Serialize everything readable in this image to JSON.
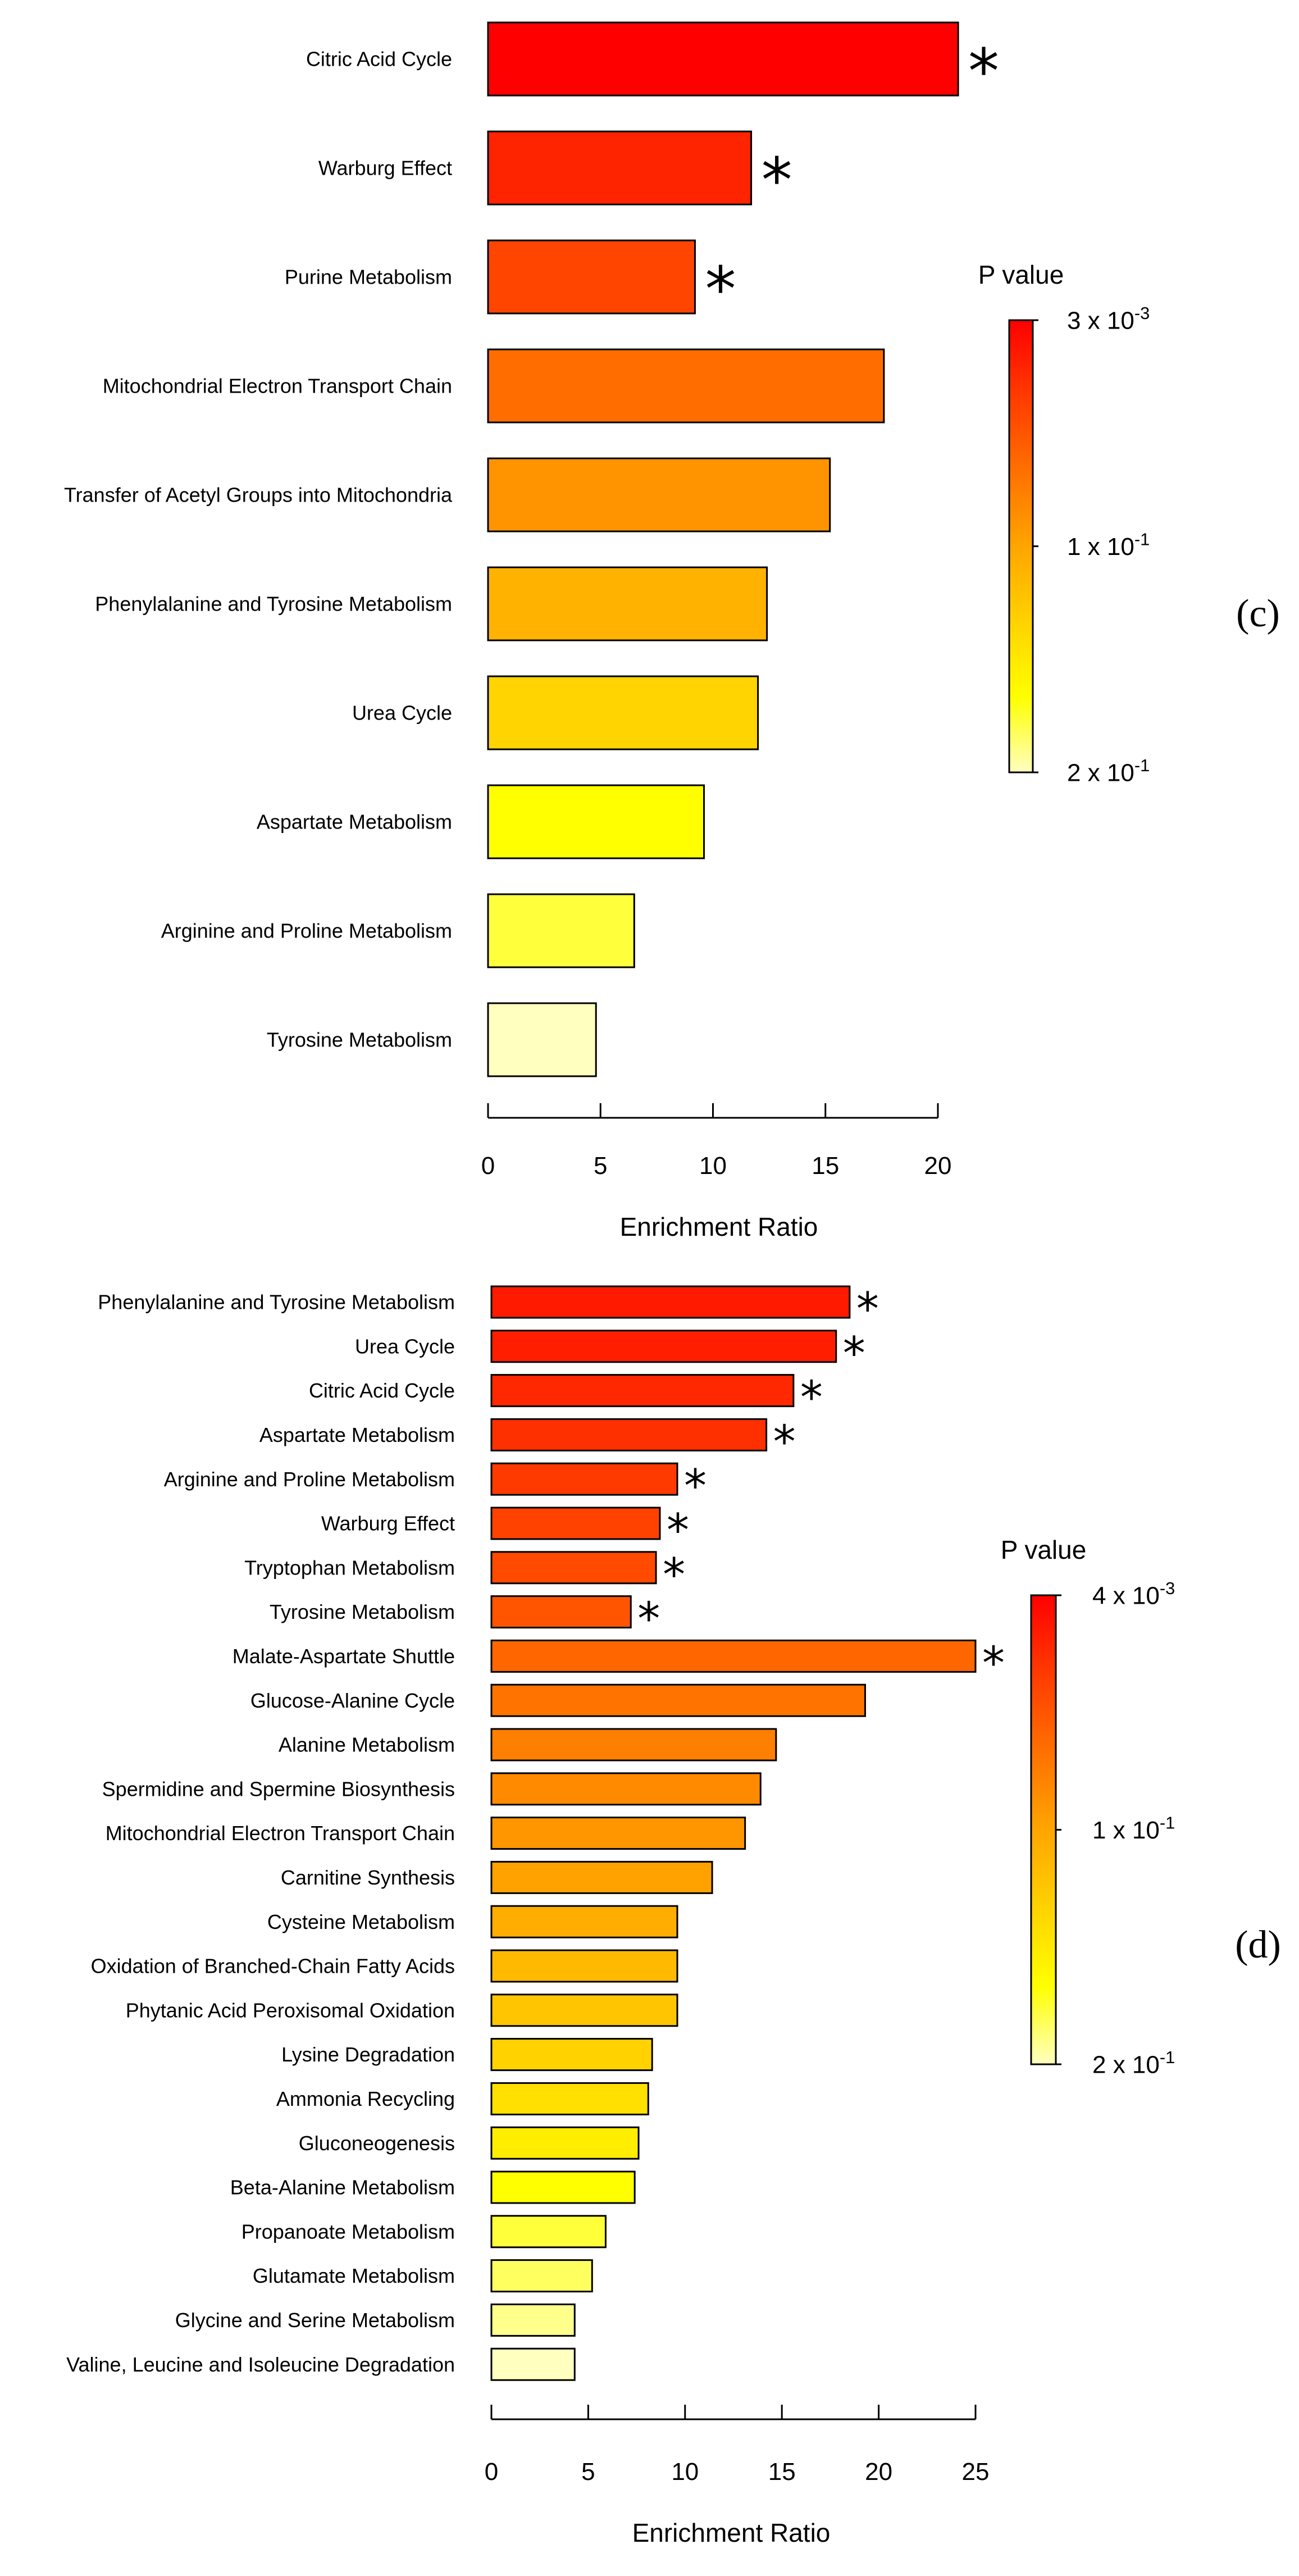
{
  "chart_data": [
    {
      "type": "bar",
      "orientation": "horizontal",
      "panel_label": "(c)",
      "xlabel": "Enrichment Ratio",
      "xlim": [
        0,
        20
      ],
      "xticks": [
        "0",
        "5",
        "10",
        "15",
        "20"
      ],
      "categories": [
        "Citric Acid Cycle",
        "Warburg Effect",
        "Purine Metabolism",
        "Mitochondrial Electron Transport Chain",
        "Transfer of Acetyl Groups into Mitochondria",
        "Phenylalanine and Tyrosine Metabolism",
        "Urea Cycle",
        "Aspartate Metabolism",
        "Arginine and Proline Metabolism",
        "Tyrosine Metabolism"
      ],
      "values": [
        20.9,
        11.7,
        9.2,
        17.6,
        15.2,
        12.4,
        12.0,
        9.6,
        6.5,
        4.8
      ],
      "significant": [
        true,
        true,
        true,
        false,
        false,
        false,
        false,
        false,
        false,
        false
      ],
      "colors": [
        "#ff0000",
        "#ff2400",
        "#ff4500",
        "#ff6d00",
        "#ff9400",
        "#ffb300",
        "#ffd400",
        "#ffff00",
        "#ffff3c",
        "#ffffc0"
      ],
      "star_symbol": "*",
      "legend": {
        "title": "P value",
        "ticks": [
          {
            "base": "3 x 10",
            "exp": "-3"
          },
          {
            "base": "1 x 10",
            "exp": "-1"
          },
          {
            "base": "2 x 10",
            "exp": "-1"
          }
        ],
        "colors": [
          "#ff0000",
          "#ff3a00",
          "#ff7000",
          "#ffa500",
          "#ffd200",
          "#ffff00",
          "#ffffc0"
        ]
      }
    },
    {
      "type": "bar",
      "orientation": "horizontal",
      "panel_label": "(d)",
      "xlabel": "Enrichment Ratio",
      "xlim": [
        0,
        25
      ],
      "xticks": [
        "0",
        "5",
        "10",
        "15",
        "20",
        "25"
      ],
      "categories": [
        "Phenylalanine and Tyrosine Metabolism",
        "Urea Cycle",
        "Citric Acid Cycle",
        "Aspartate Metabolism",
        "Arginine and Proline Metabolism",
        "Warburg Effect",
        "Tryptophan Metabolism",
        "Tyrosine Metabolism",
        "Malate-Aspartate Shuttle",
        "Glucose-Alanine Cycle",
        "Alanine Metabolism",
        "Spermidine and Spermine Biosynthesis",
        "Mitochondrial Electron Transport Chain",
        "Carnitine Synthesis",
        "Cysteine Metabolism",
        "Oxidation of Branched-Chain Fatty Acids",
        "Phytanic Acid Peroxisomal Oxidation",
        "Lysine Degradation",
        "Ammonia Recycling",
        "Gluconeogenesis",
        "Beta-Alanine Metabolism",
        "Propanoate Metabolism",
        "Glutamate Metabolism",
        "Glycine and Serine Metabolism",
        "Valine, Leucine and Isoleucine Degradation"
      ],
      "values": [
        18.5,
        17.8,
        15.6,
        14.2,
        9.6,
        8.7,
        8.5,
        7.2,
        25.0,
        19.3,
        14.7,
        13.9,
        13.1,
        11.4,
        9.6,
        9.6,
        9.6,
        8.3,
        8.1,
        7.6,
        7.4,
        5.9,
        5.2,
        4.3,
        4.3
      ],
      "significant": [
        true,
        true,
        true,
        true,
        true,
        true,
        true,
        true,
        true,
        false,
        false,
        false,
        false,
        false,
        false,
        false,
        false,
        false,
        false,
        false,
        false,
        false,
        false,
        false,
        false
      ],
      "colors": [
        "#ff1a00",
        "#ff1f00",
        "#ff2800",
        "#ff3000",
        "#ff3a00",
        "#ff4200",
        "#ff4a00",
        "#ff5500",
        "#ff6600",
        "#ff7300",
        "#ff7f00",
        "#ff8a00",
        "#ff9600",
        "#ffa200",
        "#ffae00",
        "#ffba00",
        "#ffc500",
        "#ffd200",
        "#ffe000",
        "#ffee00",
        "#ffff00",
        "#ffff3a",
        "#ffff60",
        "#ffff8c",
        "#ffffc0"
      ],
      "star_symbol": "*",
      "legend": {
        "title": "P value",
        "ticks": [
          {
            "base": "4 x 10",
            "exp": "-3"
          },
          {
            "base": "1 x 10",
            "exp": "-1"
          },
          {
            "base": "2 x 10",
            "exp": "-1"
          }
        ],
        "colors": [
          "#ff0000",
          "#ff3a00",
          "#ff7000",
          "#ffa500",
          "#ffd200",
          "#ffff00",
          "#ffffc0"
        ]
      }
    }
  ]
}
